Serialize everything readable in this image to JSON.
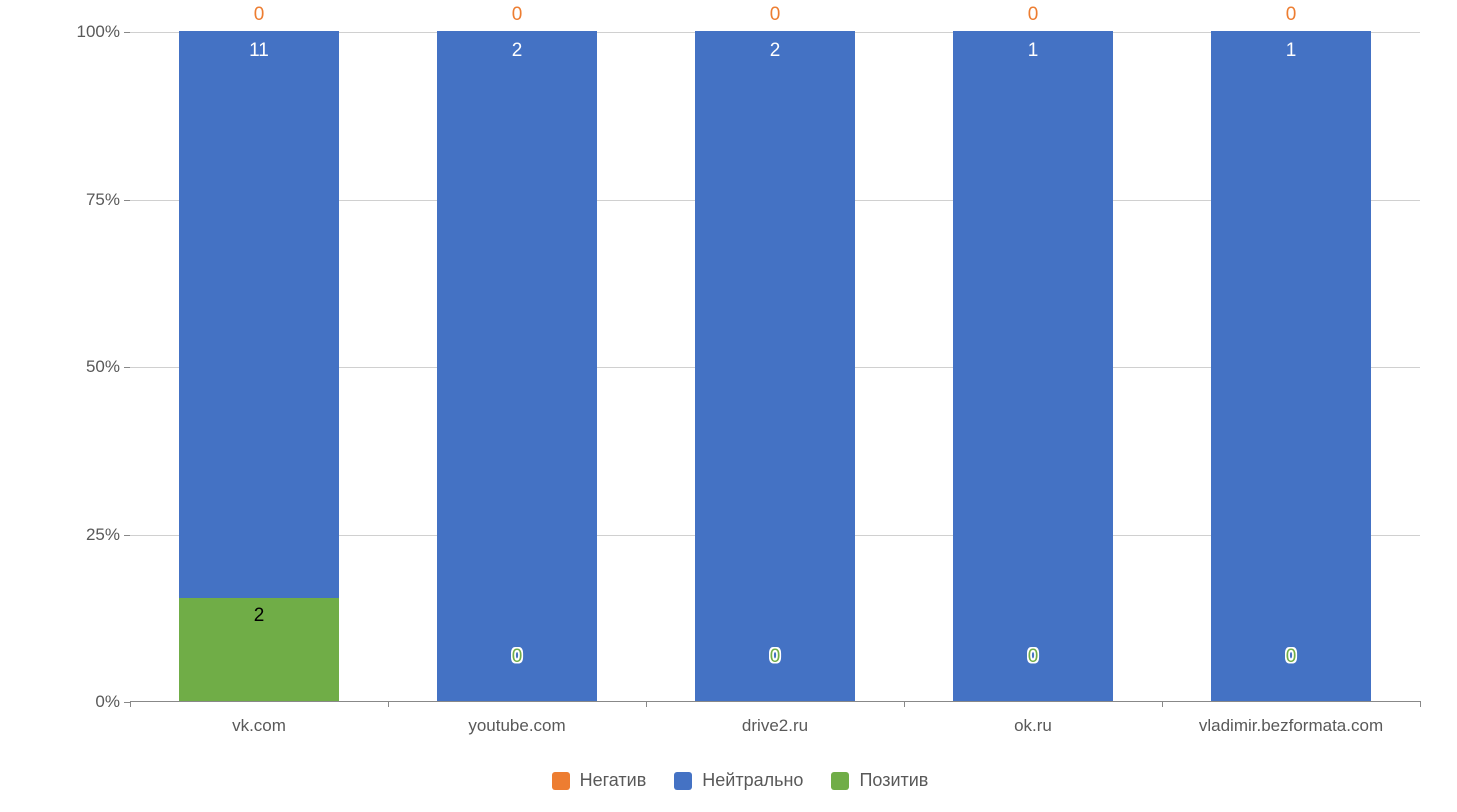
{
  "chart": {
    "type": "stacked-bar-100pct",
    "background_color": "#ffffff",
    "grid_color": "#d0d0d0",
    "axis_color": "#888888",
    "tick_font_color": "#595959",
    "tick_fontsize": 17,
    "label_fontsize": 19,
    "y_ticks": [
      "0%",
      "25%",
      "50%",
      "75%",
      "100%"
    ],
    "y_tick_positions_pct": [
      0,
      25,
      50,
      75,
      100
    ],
    "categories": [
      "vk.com",
      "youtube.com",
      "drive2.ru",
      "ok.ru",
      "vladimir.bezformata.com"
    ],
    "bar_width_ratio": 0.62,
    "series": [
      {
        "key": "positive",
        "label": "Позитив",
        "color": "#70ad47",
        "label_color": "#000000"
      },
      {
        "key": "neutral",
        "label": "Нейтрально",
        "color": "#4472c4",
        "label_color": "#ffffff"
      },
      {
        "key": "negative",
        "label": "Негатив",
        "color": "#ed7d31",
        "label_color": "#ed7d31"
      }
    ],
    "legend_order": [
      "negative",
      "neutral",
      "positive"
    ],
    "data": [
      {
        "positive": 2,
        "neutral": 11,
        "negative": 0
      },
      {
        "positive": 0,
        "neutral": 2,
        "negative": 0
      },
      {
        "positive": 0,
        "neutral": 2,
        "negative": 0
      },
      {
        "positive": 0,
        "neutral": 1,
        "negative": 0
      },
      {
        "positive": 0,
        "neutral": 1,
        "negative": 0
      }
    ],
    "zero_outline_color": "#ffffff",
    "zero_outline_width": 1.5
  }
}
